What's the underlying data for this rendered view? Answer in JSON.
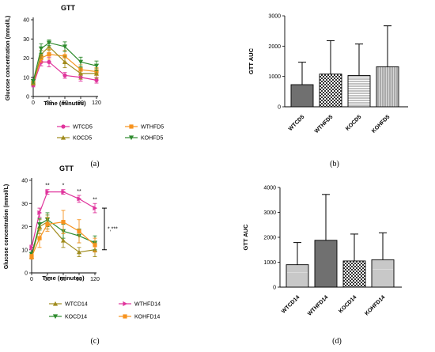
{
  "colors": {
    "WT_CD": "#e0349c",
    "WT_HFD": "#f7931e",
    "KO_CD": "#a08c1e",
    "KO_HFD": "#2e8b2e",
    "bar_fill_light": "#c8c8c8",
    "bar_fill_dark": "#707070",
    "axis": "#000000"
  },
  "chart_data": [
    {
      "panel": "(a)",
      "type": "line",
      "title": "GTT",
      "xlabel": "Time (minutes)",
      "ylabel": "Glucose concentration (mmol/L)",
      "x": [
        0,
        15,
        30,
        60,
        90,
        120
      ],
      "xlim": [
        0,
        120
      ],
      "ylim": [
        0,
        40
      ],
      "xticks": [
        0,
        30,
        60,
        90,
        120
      ],
      "yticks": [
        0,
        10,
        20,
        30,
        40
      ],
      "series": [
        {
          "name": "WTCD5",
          "color": "WT_CD",
          "marker": "circle",
          "values": [
            6,
            18,
            18,
            11,
            10,
            8.5
          ],
          "errors": [
            1,
            2,
            2.5,
            1.5,
            2,
            1.5
          ]
        },
        {
          "name": "WTHFD5",
          "color": "WT_HFD",
          "marker": "square",
          "values": [
            7,
            20,
            22,
            21,
            14,
            13
          ],
          "errors": [
            1,
            2,
            2.5,
            3,
            2.5,
            2
          ]
        },
        {
          "name": "KOCD5",
          "color": "KO_CD",
          "marker": "triangle-up",
          "values": [
            7,
            22,
            26,
            18,
            12,
            12
          ],
          "errors": [
            1,
            2,
            2,
            3,
            3,
            2.5
          ]
        },
        {
          "name": "KOHFD5",
          "color": "KO_HFD",
          "marker": "triangle-down",
          "values": [
            8,
            25,
            28,
            26,
            18,
            16
          ],
          "errors": [
            1,
            2.5,
            1.5,
            2.5,
            2.5,
            2.5
          ]
        }
      ],
      "legend": [
        "WTCD5",
        "WTHFD5",
        "KOCD5",
        "KOHFD5"
      ]
    },
    {
      "panel": "(b)",
      "type": "bar",
      "ylabel": "GTT AUC",
      "categories": [
        "WTCD5",
        "WTHFD5",
        "KOCD5",
        "KOHFD5"
      ],
      "values": [
        730,
        1080,
        1030,
        1320
      ],
      "errors": [
        740,
        1100,
        1040,
        1350
      ],
      "patterns": [
        "solid-dark",
        "checker",
        "horizontal-lines",
        "vertical-lines"
      ],
      "ylim": [
        0,
        3000
      ],
      "yticks": [
        0,
        1000,
        2000,
        3000
      ]
    },
    {
      "panel": "(c)",
      "type": "line",
      "title": "GTT",
      "xlabel": "Time (minutes)",
      "ylabel": "Glucose concentration (mmol/L)",
      "x": [
        0,
        15,
        30,
        60,
        90,
        120
      ],
      "xlim": [
        0,
        120
      ],
      "ylim": [
        0,
        40
      ],
      "xticks": [
        0,
        30,
        60,
        90,
        120
      ],
      "yticks": [
        0,
        10,
        20,
        30,
        40
      ],
      "series": [
        {
          "name": "WTCD14",
          "color": "KO_CD",
          "marker": "triangle-up",
          "values": [
            7,
            20,
            22,
            14,
            9,
            10
          ],
          "errors": [
            1,
            3,
            3,
            3,
            2,
            3
          ]
        },
        {
          "name": "WTHFD14",
          "color": "WT_CD",
          "marker": "triangle-right",
          "values": [
            11,
            26,
            35,
            35,
            32,
            28
          ],
          "errors": [
            1,
            2,
            1,
            1,
            1.5,
            2
          ]
        },
        {
          "name": "KOCD14",
          "color": "KO_HFD",
          "marker": "triangle-down",
          "values": [
            8,
            21,
            23,
            18,
            16,
            13
          ],
          "errors": [
            1,
            2.5,
            3,
            3,
            3,
            3
          ]
        },
        {
          "name": "KOHFD14",
          "color": "WT_HFD",
          "marker": "square",
          "values": [
            7,
            15,
            21,
            22,
            18,
            12
          ],
          "errors": [
            1,
            4,
            3,
            5,
            5,
            3
          ]
        }
      ],
      "annotations": [
        {
          "x": 30,
          "text": "**"
        },
        {
          "x": 60,
          "text": "*"
        },
        {
          "x": 90,
          "text": "**"
        },
        {
          "x": 120,
          "text": "**"
        }
      ],
      "bracket_label": "*,***",
      "legend": [
        "WTCD14",
        "WTHFD14",
        "KOCD14",
        "KOHFD14"
      ]
    },
    {
      "panel": "(d)",
      "type": "bar",
      "ylabel": "GTT AUC",
      "categories": [
        "WTCD14",
        "WTHFD14",
        "KOCD14",
        "KOHFD14"
      ],
      "values": [
        900,
        1880,
        1050,
        1100
      ],
      "errors": [
        890,
        1840,
        1080,
        1080
      ],
      "patterns": [
        "light",
        "solid-dark",
        "checker",
        "light"
      ],
      "ylim": [
        0,
        4000
      ],
      "yticks": [
        0,
        1000,
        2000,
        3000,
        4000
      ]
    }
  ]
}
